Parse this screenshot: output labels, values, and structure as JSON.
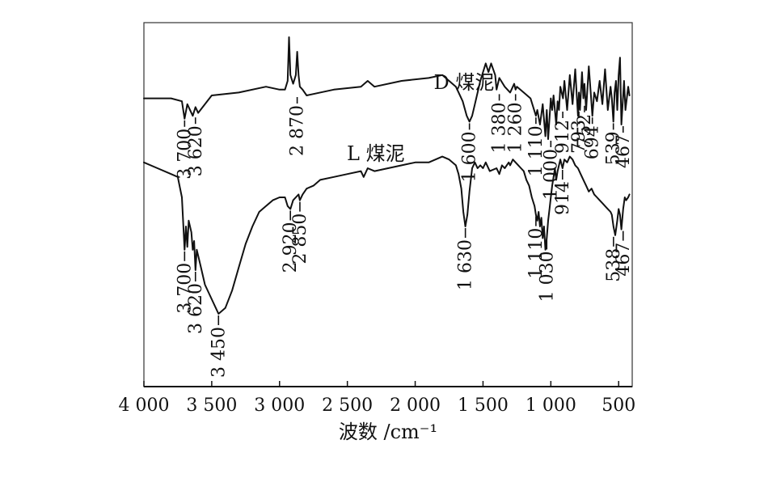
{
  "chart_data": {
    "type": "line",
    "title": "",
    "xlabel": "波数 /cm⁻¹",
    "ylabel": "",
    "x_reversed": true,
    "xlim": [
      4000,
      400
    ],
    "x_ticks": [
      4000,
      3500,
      3000,
      2500,
      2000,
      1500,
      1000,
      500
    ],
    "x_tick_labels": [
      "4 000",
      "3 500",
      "3 000",
      "2 500",
      "2 000",
      "1 500",
      "1 000",
      "500"
    ],
    "grid": false,
    "series": [
      {
        "name": "D 煤泥",
        "x": [
          4000,
          3800,
          3720,
          3700,
          3680,
          3640,
          3620,
          3600,
          3500,
          3300,
          3100,
          3000,
          2960,
          2940,
          2930,
          2920,
          2900,
          2880,
          2870,
          2860,
          2850,
          2830,
          2800,
          2600,
          2400,
          2350,
          2300,
          2100,
          1900,
          1800,
          1700,
          1650,
          1620,
          1600,
          1580,
          1560,
          1520,
          1480,
          1460,
          1440,
          1410,
          1400,
          1380,
          1340,
          1300,
          1270,
          1260,
          1250,
          1200,
          1150,
          1110,
          1100,
          1080,
          1060,
          1040,
          1030,
          1020,
          1000,
          990,
          980,
          960,
          950,
          940,
          930,
          910,
          900,
          880,
          860,
          840,
          820,
          800,
          793,
          785,
          770,
          760,
          752,
          740,
          720,
          700,
          694,
          680,
          660,
          640,
          620,
          600,
          580,
          560,
          550,
          539,
          530,
          520,
          510,
          500,
          490,
          480,
          467,
          460,
          450,
          430,
          420
        ],
        "y": [
          0.64,
          0.64,
          0.63,
          0.57,
          0.62,
          0.58,
          0.61,
          0.59,
          0.65,
          0.66,
          0.68,
          0.67,
          0.67,
          0.7,
          0.85,
          0.72,
          0.69,
          0.72,
          0.8,
          0.72,
          0.68,
          0.67,
          0.65,
          0.67,
          0.68,
          0.7,
          0.68,
          0.7,
          0.71,
          0.72,
          0.68,
          0.63,
          0.58,
          0.56,
          0.58,
          0.62,
          0.7,
          0.76,
          0.73,
          0.76,
          0.72,
          0.67,
          0.71,
          0.68,
          0.66,
          0.69,
          0.67,
          0.68,
          0.66,
          0.64,
          0.58,
          0.6,
          0.55,
          0.62,
          0.51,
          0.6,
          0.5,
          0.64,
          0.6,
          0.65,
          0.55,
          0.63,
          0.6,
          0.68,
          0.64,
          0.7,
          0.6,
          0.72,
          0.62,
          0.74,
          0.58,
          0.66,
          0.6,
          0.73,
          0.64,
          0.69,
          0.6,
          0.75,
          0.62,
          0.58,
          0.66,
          0.63,
          0.7,
          0.62,
          0.74,
          0.6,
          0.68,
          0.64,
          0.56,
          0.66,
          0.7,
          0.6,
          0.72,
          0.78,
          0.55,
          0.65,
          0.7,
          0.6,
          0.68,
          0.65
        ]
      },
      {
        "name": "L 煤泥",
        "x": [
          4000,
          3900,
          3800,
          3750,
          3720,
          3700,
          3690,
          3680,
          3670,
          3650,
          3640,
          3630,
          3620,
          3610,
          3600,
          3580,
          3550,
          3500,
          3450,
          3400,
          3350,
          3300,
          3250,
          3200,
          3150,
          3100,
          3050,
          3000,
          2960,
          2940,
          2920,
          2900,
          2880,
          2860,
          2850,
          2830,
          2800,
          2750,
          2700,
          2600,
          2500,
          2400,
          2380,
          2350,
          2300,
          2200,
          2100,
          2000,
          1900,
          1850,
          1800,
          1750,
          1700,
          1680,
          1660,
          1645,
          1630,
          1615,
          1600,
          1580,
          1560,
          1540,
          1520,
          1500,
          1480,
          1450,
          1400,
          1380,
          1360,
          1340,
          1310,
          1300,
          1280,
          1260,
          1240,
          1220,
          1200,
          1180,
          1160,
          1140,
          1120,
          1110,
          1100,
          1090,
          1080,
          1070,
          1060,
          1050,
          1040,
          1030,
          1020,
          1010,
          1000,
          990,
          980,
          970,
          960,
          950,
          940,
          930,
          914,
          900,
          880,
          860,
          840,
          820,
          800,
          780,
          760,
          740,
          720,
          700,
          680,
          660,
          640,
          620,
          600,
          580,
          560,
          550,
          538,
          525,
          510,
          500,
          490,
          480,
          467,
          455,
          445,
          430,
          420
        ],
        "y": [
          0.42,
          0.4,
          0.38,
          0.37,
          0.3,
          0.12,
          0.2,
          0.13,
          0.22,
          0.18,
          0.12,
          0.15,
          0.05,
          0.12,
          0.1,
          0.06,
          0.0,
          -0.05,
          -0.1,
          -0.08,
          -0.02,
          0.06,
          0.14,
          0.2,
          0.25,
          0.27,
          0.29,
          0.3,
          0.3,
          0.27,
          0.26,
          0.29,
          0.3,
          0.31,
          0.29,
          0.31,
          0.33,
          0.34,
          0.36,
          0.37,
          0.38,
          0.39,
          0.37,
          0.4,
          0.39,
          0.4,
          0.41,
          0.42,
          0.42,
          0.43,
          0.44,
          0.43,
          0.41,
          0.38,
          0.33,
          0.25,
          0.2,
          0.24,
          0.32,
          0.4,
          0.42,
          0.4,
          0.41,
          0.4,
          0.42,
          0.39,
          0.4,
          0.38,
          0.41,
          0.4,
          0.42,
          0.41,
          0.43,
          0.42,
          0.41,
          0.4,
          0.39,
          0.36,
          0.34,
          0.3,
          0.27,
          0.24,
          0.22,
          0.25,
          0.2,
          0.23,
          0.16,
          0.2,
          0.12,
          0.16,
          0.22,
          0.26,
          0.3,
          0.34,
          0.37,
          0.4,
          0.36,
          0.39,
          0.41,
          0.43,
          0.4,
          0.43,
          0.42,
          0.44,
          0.43,
          0.41,
          0.4,
          0.38,
          0.36,
          0.34,
          0.32,
          0.33,
          0.31,
          0.3,
          0.29,
          0.28,
          0.27,
          0.26,
          0.25,
          0.24,
          0.2,
          0.17,
          0.22,
          0.26,
          0.24,
          0.19,
          0.26,
          0.3,
          0.29,
          0.3,
          0.31
        ]
      }
    ],
    "annotations": [
      {
        "series": 0,
        "x": 3700,
        "y": 0.57,
        "label": "3 700"
      },
      {
        "series": 0,
        "x": 3620,
        "y": 0.58,
        "label": "3 620"
      },
      {
        "series": 0,
        "x": 2870,
        "y": 0.65,
        "label": "2 870"
      },
      {
        "series": 0,
        "x": 1600,
        "y": 0.56,
        "label": "1 600"
      },
      {
        "series": 0,
        "x": 1380,
        "y": 0.66,
        "label": "1 380"
      },
      {
        "series": 0,
        "x": 1260,
        "y": 0.66,
        "label": "1 260"
      },
      {
        "series": 0,
        "x": 1110,
        "y": 0.58,
        "label": "1 110"
      },
      {
        "series": 0,
        "x": 1000,
        "y": 0.5,
        "label": "1 000"
      },
      {
        "series": 0,
        "x": 912,
        "y": 0.6,
        "label": "912"
      },
      {
        "series": 0,
        "x": 793,
        "y": 0.6,
        "label": "793"
      },
      {
        "series": 0,
        "x": 752,
        "y": 0.62,
        "label": "752"
      },
      {
        "series": 0,
        "x": 694,
        "y": 0.58,
        "label": "694"
      },
      {
        "series": 0,
        "x": 539,
        "y": 0.56,
        "label": "539"
      },
      {
        "series": 0,
        "x": 467,
        "y": 0.55,
        "label": "467"
      },
      {
        "series": 1,
        "x": 3700,
        "y": 0.12,
        "label": "3 700"
      },
      {
        "series": 1,
        "x": 3620,
        "y": 0.05,
        "label": "3 620"
      },
      {
        "series": 1,
        "x": 3450,
        "y": -0.1,
        "label": "3 450"
      },
      {
        "series": 1,
        "x": 2920,
        "y": 0.26,
        "label": "2 920"
      },
      {
        "series": 1,
        "x": 2850,
        "y": 0.29,
        "label": "2 850"
      },
      {
        "series": 1,
        "x": 1630,
        "y": 0.2,
        "label": "1 630"
      },
      {
        "series": 1,
        "x": 1110,
        "y": 0.24,
        "label": "1 110"
      },
      {
        "series": 1,
        "x": 1030,
        "y": 0.16,
        "label": "1 030"
      },
      {
        "series": 1,
        "x": 914,
        "y": 0.4,
        "label": "914"
      },
      {
        "series": 1,
        "x": 538,
        "y": 0.17,
        "label": "538"
      },
      {
        "series": 1,
        "x": 467,
        "y": 0.19,
        "label": "467"
      }
    ]
  }
}
